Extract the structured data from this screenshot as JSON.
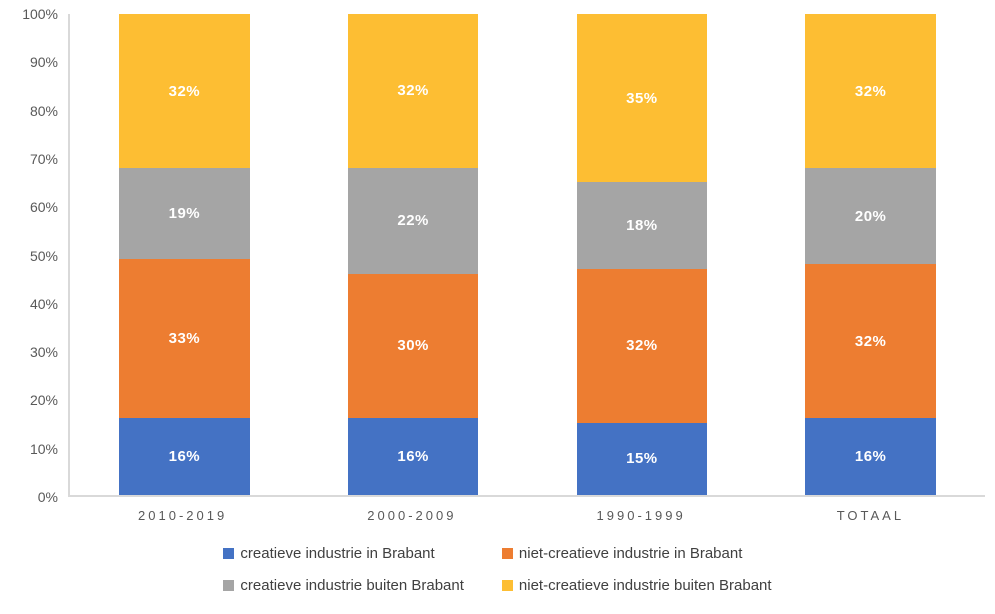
{
  "chart_data": {
    "type": "bar",
    "subtype": "stacked-100-percent-column",
    "title": "",
    "categories": [
      "2010-2019",
      "2000-2009",
      "1990-1999",
      "TOTAAL"
    ],
    "series": [
      {
        "name": "creatieve industrie in Brabant",
        "color": "#4472C4",
        "values": [
          16,
          16,
          15,
          16
        ]
      },
      {
        "name": "niet-creatieve industrie in Brabant",
        "color": "#ED7D31",
        "values": [
          33,
          30,
          32,
          32
        ]
      },
      {
        "name": "creatieve industrie buiten Brabant",
        "color": "#A5A5A5",
        "values": [
          19,
          22,
          18,
          20
        ]
      },
      {
        "name": "niet-creatieve industrie buiten Brabant",
        "color": "#FDBE33",
        "values": [
          32,
          32,
          35,
          32
        ]
      }
    ],
    "value_suffix": "%",
    "data_labels": true,
    "data_label_color": "#FFFFFF",
    "y_axis": {
      "min": 0,
      "max": 100,
      "step": 10,
      "ticks": [
        "100%",
        "90%",
        "80%",
        "70%",
        "60%",
        "50%",
        "40%",
        "30%",
        "20%",
        "10%",
        "0%"
      ]
    },
    "gridlines": false,
    "legend_position": "bottom",
    "axis_line_color": "#D9D9D9",
    "tick_label_color": "#595959",
    "legend_text_color": "#404040"
  }
}
